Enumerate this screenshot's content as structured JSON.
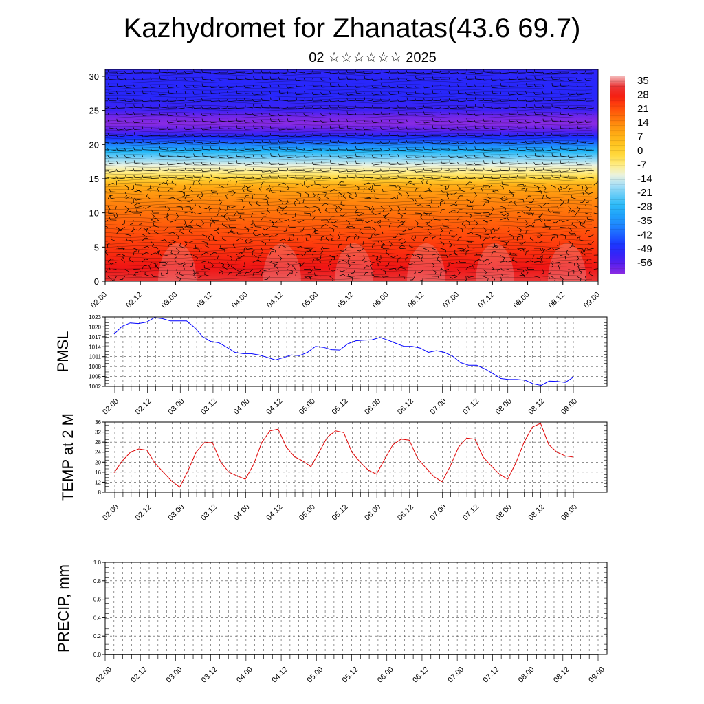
{
  "title": "Kazhydromet for Zhanatas(43.6 69.7)",
  "subtitle": "02 ☆☆☆☆☆☆ 2025",
  "chart_data": [
    {
      "type": "heatmap",
      "name": "temperature-wind-height-section",
      "x_ticks": [
        "02.00",
        "02.12",
        "03.00",
        "03.12",
        "04.00",
        "04.12",
        "05.00",
        "05.12",
        "06.00",
        "06.12",
        "07.00",
        "07.12",
        "08.00",
        "08.12",
        "09.00"
      ],
      "y_ticks": [
        "0",
        "5",
        "10",
        "15",
        "20",
        "25",
        "30"
      ],
      "ylim": [
        0,
        31
      ],
      "colorbar_labels": [
        "35",
        "28",
        "21",
        "14",
        "7",
        "0",
        "-7",
        "-14",
        "-21",
        "-28",
        "-35",
        "-42",
        "-49",
        "-56"
      ],
      "temperature_profile": {
        "heights": [
          0,
          2,
          4,
          6,
          8,
          10,
          12,
          14,
          15,
          16,
          17,
          18,
          19,
          20,
          21,
          22,
          23,
          24,
          25,
          27,
          29,
          31
        ],
        "values": [
          30,
          27,
          24,
          21,
          18,
          15,
          12,
          7,
          -2,
          -8,
          -13,
          -20,
          -28,
          -38,
          -47,
          -55,
          -60,
          -58,
          -52,
          -49,
          -49,
          -50
        ]
      }
    },
    {
      "type": "line",
      "ylabel": "PMSL",
      "x_ticks": [
        "02.00",
        "02.12",
        "03.00",
        "03.12",
        "04.00",
        "04.12",
        "05.00",
        "05.12",
        "06.00",
        "06.12",
        "07.00",
        "07.12",
        "08.00",
        "08.12",
        "09.00"
      ],
      "y_ticks": [
        "1002",
        "1005",
        "1008",
        "1011",
        "1014",
        "1017",
        "1020",
        "1023"
      ],
      "ylim": [
        1002,
        1023
      ],
      "color": "#0000ff",
      "values": [
        1017.8,
        1020.2,
        1021.2,
        1021.0,
        1021.4,
        1022.8,
        1022.5,
        1021.8,
        1021.8,
        1021.8,
        1019.8,
        1017.0,
        1015.6,
        1015.2,
        1013.8,
        1012.3,
        1011.9,
        1011.9,
        1011.5,
        1010.8,
        1010.0,
        1010.7,
        1011.5,
        1011.3,
        1012.3,
        1014.1,
        1013.8,
        1013.1,
        1013.0,
        1014.9,
        1015.8,
        1016.0,
        1016.1,
        1016.8,
        1016.0,
        1015.0,
        1014.1,
        1014.1,
        1013.6,
        1012.3,
        1012.8,
        1012.3,
        1011.2,
        1009.2,
        1008.4,
        1008.4,
        1007.3,
        1005.9,
        1004.4,
        1004.1,
        1004.1,
        1003.9,
        1002.8,
        1002.3,
        1003.6,
        1003.5,
        1003.2,
        1004.8
      ]
    },
    {
      "type": "line",
      "ylabel": "TEMP at 2 M",
      "x_ticks": [
        "02.00",
        "02.12",
        "03.00",
        "03.12",
        "04.00",
        "04.12",
        "05.00",
        "05.12",
        "06.00",
        "06.12",
        "07.00",
        "07.12",
        "08.00",
        "08.12",
        "09.00"
      ],
      "y_ticks": [
        "8",
        "12",
        "16",
        "20",
        "24",
        "28",
        "32",
        "36"
      ],
      "ylim": [
        8,
        36
      ],
      "color": "#e00000",
      "values": [
        15.8,
        20.5,
        24.0,
        25.3,
        24.8,
        19.5,
        16.0,
        12.5,
        10.0,
        16.5,
        24.0,
        27.8,
        27.8,
        20.0,
        16.0,
        14.5,
        13.2,
        19.0,
        27.8,
        32.5,
        33.2,
        26.0,
        22.2,
        20.5,
        18.2,
        24.0,
        30.0,
        32.5,
        31.8,
        24.0,
        20.0,
        16.8,
        15.2,
        21.2,
        27.0,
        29.2,
        28.8,
        21.5,
        17.8,
        14.2,
        12.2,
        18.5,
        26.0,
        29.6,
        29.2,
        22.0,
        18.5,
        15.2,
        13.2,
        19.8,
        28.0,
        34.0,
        35.5,
        27.0,
        24.0,
        22.5,
        22.0
      ]
    },
    {
      "type": "line",
      "ylabel": "PRECIP, mm",
      "x_ticks": [
        "02.00",
        "02.12",
        "03.00",
        "03.12",
        "04.00",
        "04.12",
        "05.00",
        "05.12",
        "06.00",
        "06.12",
        "07.00",
        "07.12",
        "08.00",
        "08.12",
        "09.00"
      ],
      "y_ticks": [
        "0.0",
        "0.2",
        "0.4",
        "0.6",
        "0.8",
        "1.0"
      ],
      "ylim": [
        0,
        1
      ],
      "color": "#000000",
      "values": [
        0,
        0,
        0,
        0,
        0,
        0,
        0,
        0,
        0,
        0,
        0,
        0,
        0,
        0,
        0,
        0,
        0,
        0,
        0,
        0,
        0,
        0,
        0,
        0,
        0,
        0,
        0,
        0,
        0,
        0,
        0,
        0,
        0,
        0,
        0,
        0,
        0,
        0,
        0,
        0,
        0,
        0,
        0,
        0,
        0,
        0,
        0,
        0,
        0,
        0,
        0,
        0,
        0,
        0,
        0,
        0,
        0
      ]
    }
  ]
}
